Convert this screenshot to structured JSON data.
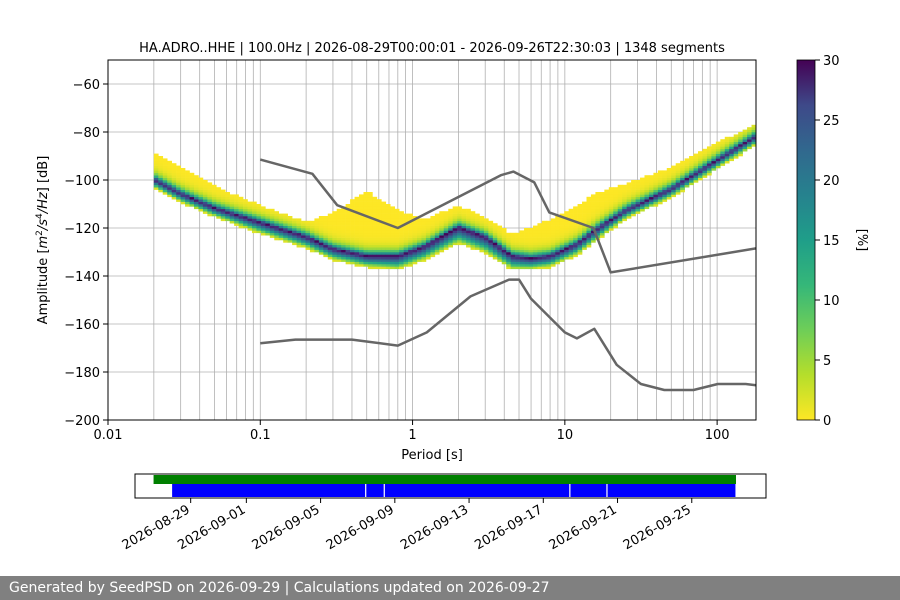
{
  "chart_data": {
    "type": "heatmap",
    "title": "HA.ADRO..HHE | 100.0Hz | 2026-08-29T00:00:01 - 2026-09-26T22:30:03 | 1348 segments",
    "xlabel": "Period [s]",
    "x_scale": "log",
    "xlim": [
      0.01,
      180
    ],
    "x_tick_labels": [
      "0.01",
      "0.1",
      "1",
      "10",
      "100"
    ],
    "x_tick_values": [
      0.01,
      0.1,
      1,
      10,
      100
    ],
    "ylabel": "Amplitude [m²/s⁴/Hz] [dB]",
    "ylim": [
      -200,
      -50
    ],
    "y_tick_values": [
      -200,
      -180,
      -160,
      -140,
      -120,
      -100,
      -80,
      -60
    ],
    "grid": true,
    "colorbar": {
      "label": "[%]",
      "range": [
        0,
        30
      ],
      "tick_values": [
        0,
        5,
        10,
        15,
        20,
        25,
        30
      ],
      "colormap": "viridis_r"
    },
    "psd_mode_curve": {
      "x": [
        0.02,
        0.03,
        0.05,
        0.1,
        0.2,
        0.3,
        0.5,
        0.8,
        1.2,
        2,
        3,
        4.5,
        6,
        8,
        12,
        16,
        25,
        50,
        100,
        180
      ],
      "y": [
        -100,
        -106,
        -112,
        -118,
        -124,
        -129,
        -132,
        -132,
        -128,
        -120,
        -124,
        -132,
        -133,
        -132,
        -127,
        -121,
        -113,
        -104,
        -92,
        -82
      ]
    },
    "psd_spread": {
      "upper_extra_db": [
        10,
        10,
        8,
        6,
        5,
        14,
        26,
        18,
        10,
        8,
        7,
        8,
        12,
        14,
        15,
        14,
        10,
        8,
        6,
        4
      ],
      "lower_extra_db": [
        3,
        3,
        3,
        4,
        4,
        4,
        4,
        5,
        5,
        6,
        6,
        5,
        4,
        4,
        4,
        4,
        3,
        3,
        3,
        3
      ]
    },
    "noise_models": [
      {
        "x": [
          0.1,
          0.22,
          0.32,
          0.8,
          3.8,
          4.6,
          6.3,
          7.9,
          15.4,
          20,
          180
        ],
        "y": [
          -91.5,
          -97.4,
          -110.5,
          -120,
          -98,
          -96.5,
          -101,
          -113.5,
          -120,
          -138.5,
          -128.5
        ]
      },
      {
        "x": [
          0.1,
          0.17,
          0.4,
          0.8,
          1.24,
          2.4,
          4.3,
          5.0,
          6.0,
          10,
          12,
          15.6,
          21.9,
          31.6,
          45,
          70,
          101,
          154,
          180
        ],
        "y": [
          -168,
          -166.5,
          -166.5,
          -169,
          -163.5,
          -148.5,
          -141.5,
          -141.5,
          -149.5,
          -163.5,
          -166,
          -162,
          -177,
          -185,
          -187.5,
          -187.5,
          -185,
          -185,
          -185.5
        ]
      }
    ],
    "timeline": {
      "date_tick_labels": [
        "2026-08-29",
        "2026-09-01",
        "2026-09-05",
        "2026-09-09",
        "2026-09-13",
        "2026-09-17",
        "2026-09-21",
        "2026-09-25"
      ],
      "range": [
        "2026-08-26",
        "2026-09-29"
      ],
      "data_available": {
        "start": "2026-08-27",
        "end": "2026-09-29",
        "color": "#008000"
      },
      "psd_segments": {
        "start": "2026-08-28",
        "end": "2026-09-28",
        "gaps": [
          "2026-09-07",
          "2026-09-08",
          "2026-09-18",
          "2026-09-20"
        ],
        "color": "#0000ff"
      }
    }
  },
  "footer": {
    "text": "Generated by SeedPSD on 2026-09-29 | Calculations updated on 2026-09-27"
  }
}
